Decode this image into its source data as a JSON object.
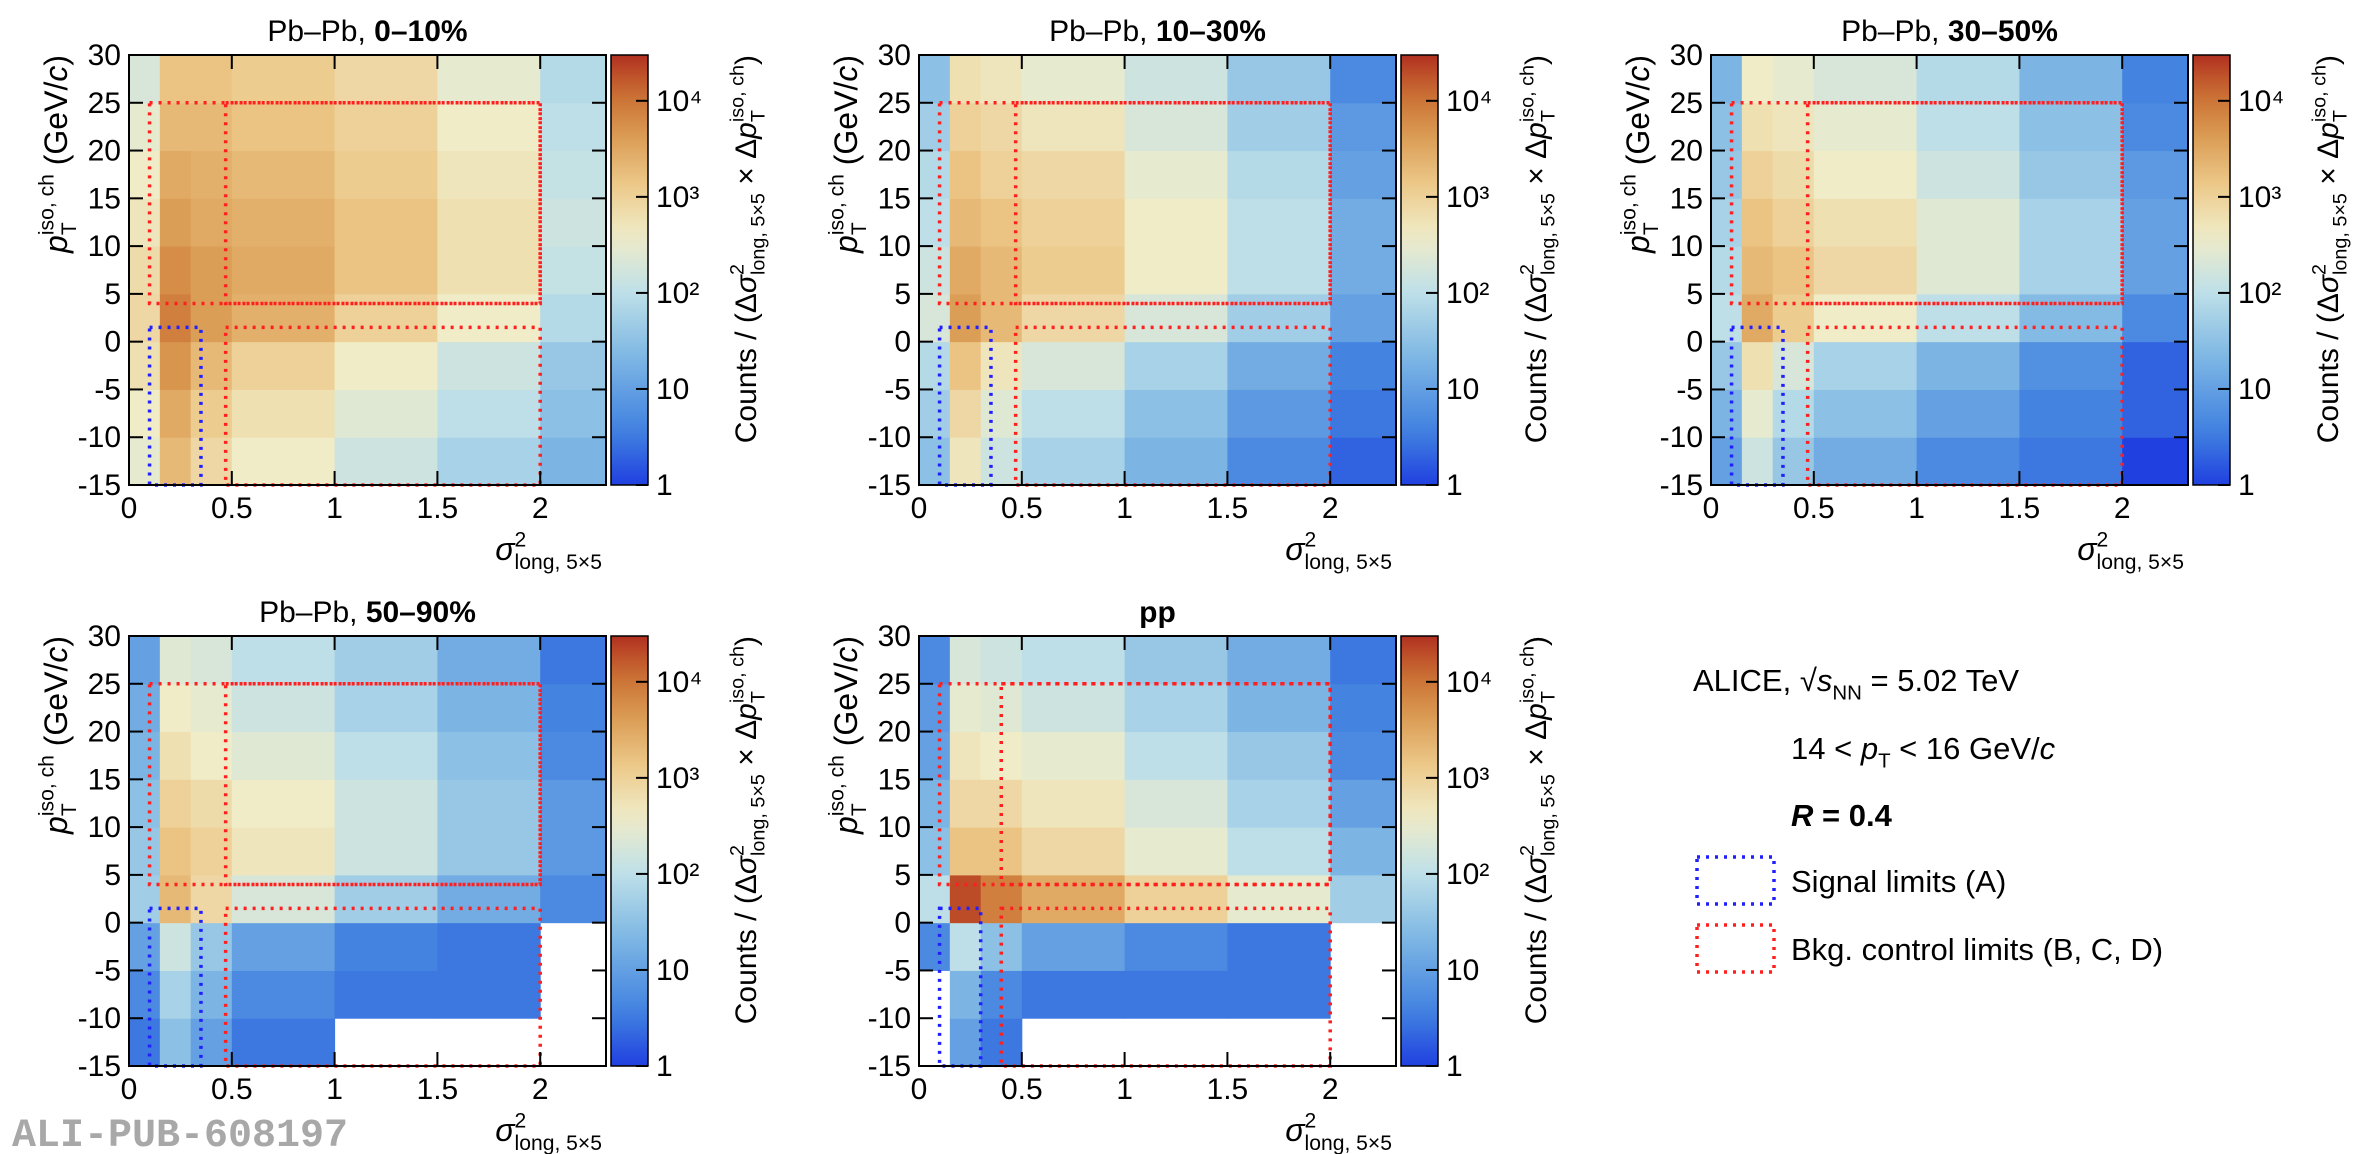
{
  "chart_data": [
    {
      "type": "heatmap",
      "title": [
        {
          "text": "Pb–Pb, ",
          "style": "normal"
        },
        {
          "text": "0–10%",
          "style": "bold"
        }
      ],
      "xbins": [
        0,
        0.15,
        0.3,
        0.5,
        1,
        1.5,
        2,
        2.32
      ],
      "ybins": [
        -15,
        -10,
        -5,
        0,
        5,
        10,
        15,
        20,
        25,
        30
      ],
      "z": [
        [
          300,
          2000,
          800,
          400,
          150,
          60,
          20
        ],
        [
          400,
          3000,
          1200,
          600,
          250,
          100,
          30
        ],
        [
          600,
          5000,
          2000,
          1000,
          400,
          150,
          40
        ],
        [
          800,
          8000,
          4000,
          2500,
          1000,
          400,
          80
        ],
        [
          700,
          6000,
          4000,
          3000,
          1500,
          600,
          120
        ],
        [
          500,
          4000,
          3000,
          2500,
          1500,
          600,
          150
        ],
        [
          400,
          3000,
          2500,
          2000,
          1200,
          500,
          120
        ],
        [
          300,
          2000,
          2000,
          1500,
          1000,
          400,
          100
        ],
        [
          200,
          1500,
          1500,
          1200,
          800,
          300,
          80
        ]
      ],
      "xlim": [
        0,
        2.32
      ],
      "ylim": [
        -15,
        30
      ],
      "zlim": [
        1,
        30000
      ],
      "log_z": true,
      "xticks": [
        0,
        0.5,
        1,
        1.5,
        2
      ],
      "yticks": [
        -15,
        -10,
        -5,
        0,
        5,
        10,
        15,
        20,
        25,
        30
      ],
      "zticks": [
        1,
        10,
        {
          "value": 100,
          "label": "10²"
        },
        {
          "value": 1000,
          "label": "10³"
        },
        {
          "value": 10000,
          "label": "10⁴"
        }
      ],
      "signal_limits": {
        "x": [
          0.1,
          0.35
        ],
        "y": [
          -15,
          1.5
        ]
      },
      "background_limits": [
        {
          "x": [
            0.1,
            2
          ],
          "y": [
            4,
            25
          ]
        },
        {
          "x": [
            0.47,
            2
          ],
          "y": [
            -15,
            1.5
          ]
        },
        {
          "x": [
            0.47,
            2
          ],
          "y": [
            4,
            25
          ]
        }
      ]
    },
    {
      "type": "heatmap",
      "title": [
        {
          "text": "Pb–Pb, ",
          "style": "normal"
        },
        {
          "text": "10–30%",
          "style": "bold"
        }
      ],
      "xbins": [
        0,
        0.15,
        0.3,
        0.5,
        1,
        1.5,
        2,
        2.32
      ],
      "ybins": [
        -15,
        -10,
        -5,
        0,
        5,
        10,
        15,
        20,
        25,
        30
      ],
      "z": [
        [
          30,
          500,
          150,
          60,
          20,
          5,
          2
        ],
        [
          50,
          800,
          250,
          100,
          30,
          8,
          3
        ],
        [
          80,
          1500,
          500,
          200,
          60,
          15,
          4
        ],
        [
          200,
          4000,
          2000,
          800,
          200,
          50,
          10
        ],
        [
          150,
          3000,
          2000,
          1200,
          400,
          100,
          15
        ],
        [
          100,
          2000,
          1500,
          1000,
          400,
          100,
          15
        ],
        [
          80,
          1500,
          1000,
          800,
          300,
          80,
          10
        ],
        [
          50,
          1000,
          800,
          500,
          200,
          50,
          8
        ],
        [
          30,
          600,
          500,
          300,
          150,
          40,
          5
        ]
      ],
      "xlim": [
        0,
        2.32
      ],
      "ylim": [
        -15,
        30
      ],
      "zlim": [
        1,
        30000
      ],
      "log_z": true,
      "xticks": [
        0,
        0.5,
        1,
        1.5,
        2
      ],
      "yticks": [
        -15,
        -10,
        -5,
        0,
        5,
        10,
        15,
        20,
        25,
        30
      ],
      "zticks": [
        1,
        10,
        {
          "value": 100,
          "label": "10²"
        },
        {
          "value": 1000,
          "label": "10³"
        },
        {
          "value": 10000,
          "label": "10⁴"
        }
      ],
      "signal_limits": {
        "x": [
          0.1,
          0.35
        ],
        "y": [
          -15,
          1.5
        ]
      },
      "background_limits": [
        {
          "x": [
            0.1,
            2
          ],
          "y": [
            4,
            25
          ]
        },
        {
          "x": [
            0.47,
            2
          ],
          "y": [
            -15,
            1.5
          ]
        },
        {
          "x": [
            0.47,
            2
          ],
          "y": [
            4,
            25
          ]
        }
      ]
    },
    {
      "type": "heatmap",
      "title": [
        {
          "text": "Pb–Pb, ",
          "style": "normal"
        },
        {
          "text": "30–50%",
          "style": "bold"
        }
      ],
      "xbins": [
        0,
        0.15,
        0.3,
        0.5,
        1,
        1.5,
        2,
        2.32
      ],
      "ybins": [
        -15,
        -10,
        -5,
        0,
        5,
        10,
        15,
        20,
        25,
        30
      ],
      "z": [
        [
          10,
          150,
          40,
          15,
          5,
          3,
          1
        ],
        [
          20,
          300,
          80,
          30,
          10,
          4,
          2
        ],
        [
          40,
          600,
          200,
          60,
          20,
          6,
          2
        ],
        [
          100,
          3000,
          1200,
          400,
          100,
          25,
          5
        ],
        [
          80,
          2000,
          1500,
          800,
          250,
          60,
          10
        ],
        [
          60,
          1500,
          1000,
          600,
          250,
          60,
          10
        ],
        [
          40,
          1000,
          700,
          400,
          150,
          40,
          8
        ],
        [
          30,
          600,
          500,
          300,
          100,
          30,
          5
        ],
        [
          20,
          400,
          300,
          200,
          80,
          20,
          4
        ]
      ],
      "xlim": [
        0,
        2.32
      ],
      "ylim": [
        -15,
        30
      ],
      "zlim": [
        1,
        30000
      ],
      "log_z": true,
      "xticks": [
        0,
        0.5,
        1,
        1.5,
        2
      ],
      "yticks": [
        -15,
        -10,
        -5,
        0,
        5,
        10,
        15,
        20,
        25,
        30
      ],
      "zticks": [
        1,
        10,
        {
          "value": 100,
          "label": "10²"
        },
        {
          "value": 1000,
          "label": "10³"
        },
        {
          "value": 10000,
          "label": "10⁴"
        }
      ],
      "signal_limits": {
        "x": [
          0.1,
          0.35
        ],
        "y": [
          -15,
          1.5
        ]
      },
      "background_limits": [
        {
          "x": [
            0.1,
            2
          ],
          "y": [
            4,
            25
          ]
        },
        {
          "x": [
            0.47,
            2
          ],
          "y": [
            -15,
            1.5
          ]
        },
        {
          "x": [
            0.47,
            2
          ],
          "y": [
            4,
            25
          ]
        }
      ]
    },
    {
      "type": "heatmap",
      "title": [
        {
          "text": "Pb–Pb, ",
          "style": "normal"
        },
        {
          "text": "50–90%",
          "style": "bold"
        }
      ],
      "xbins": [
        0,
        0.15,
        0.3,
        0.5,
        1,
        1.5,
        2,
        2.32
      ],
      "ybins": [
        -15,
        -10,
        -5,
        0,
        5,
        10,
        15,
        20,
        25,
        30
      ],
      "z": [
        [
          3,
          30,
          10,
          3,
          null,
          null,
          null
        ],
        [
          5,
          60,
          20,
          5,
          3,
          3,
          null
        ],
        [
          10,
          150,
          40,
          10,
          4,
          3,
          null
        ],
        [
          50,
          2000,
          800,
          200,
          50,
          15,
          5
        ],
        [
          40,
          1500,
          1000,
          500,
          150,
          40,
          8
        ],
        [
          30,
          1000,
          700,
          400,
          150,
          40,
          8
        ],
        [
          20,
          600,
          400,
          250,
          100,
          30,
          5
        ],
        [
          15,
          400,
          300,
          150,
          60,
          20,
          4
        ],
        [
          10,
          250,
          200,
          100,
          50,
          15,
          3
        ]
      ],
      "xlim": [
        0,
        2.32
      ],
      "ylim": [
        -15,
        30
      ],
      "zlim": [
        1,
        30000
      ],
      "log_z": true,
      "xticks": [
        0,
        0.5,
        1,
        1.5,
        2
      ],
      "yticks": [
        -15,
        -10,
        -5,
        0,
        5,
        10,
        15,
        20,
        25,
        30
      ],
      "zticks": [
        1,
        10,
        {
          "value": 100,
          "label": "10²"
        },
        {
          "value": 1000,
          "label": "10³"
        },
        {
          "value": 10000,
          "label": "10⁴"
        }
      ],
      "signal_limits": {
        "x": [
          0.1,
          0.35
        ],
        "y": [
          -15,
          1.5
        ]
      },
      "background_limits": [
        {
          "x": [
            0.1,
            2
          ],
          "y": [
            4,
            25
          ]
        },
        {
          "x": [
            0.47,
            2
          ],
          "y": [
            -15,
            1.5
          ]
        },
        {
          "x": [
            0.47,
            2
          ],
          "y": [
            4,
            25
          ]
        }
      ]
    },
    {
      "type": "heatmap",
      "title": [
        {
          "text": "pp",
          "style": "bold"
        }
      ],
      "xbins": [
        0,
        0.15,
        0.3,
        0.5,
        1,
        1.5,
        2,
        2.32
      ],
      "ybins": [
        -15,
        -10,
        -5,
        0,
        5,
        10,
        15,
        20,
        25,
        30
      ],
      "z": [
        [
          null,
          10,
          3,
          null,
          null,
          null,
          null
        ],
        [
          null,
          20,
          5,
          3,
          3,
          3,
          null
        ],
        [
          5,
          100,
          30,
          10,
          5,
          3,
          null
        ],
        [
          100,
          20000,
          8000,
          3000,
          1000,
          300,
          50
        ],
        [
          30,
          1500,
          1500,
          800,
          300,
          100,
          20
        ],
        [
          20,
          800,
          800,
          500,
          200,
          60,
          10
        ],
        [
          10,
          500,
          400,
          300,
          100,
          40,
          5
        ],
        [
          8,
          300,
          250,
          150,
          60,
          20,
          4
        ],
        [
          5,
          200,
          150,
          100,
          40,
          15,
          3
        ]
      ],
      "xlim": [
        0,
        2.32
      ],
      "ylim": [
        -15,
        30
      ],
      "zlim": [
        1,
        30000
      ],
      "log_z": true,
      "xticks": [
        0,
        0.5,
        1,
        1.5,
        2
      ],
      "yticks": [
        -15,
        -10,
        -5,
        0,
        5,
        10,
        15,
        20,
        25,
        30
      ],
      "zticks": [
        1,
        10,
        {
          "value": 100,
          "label": "10²"
        },
        {
          "value": 1000,
          "label": "10³"
        },
        {
          "value": 10000,
          "label": "10⁴"
        }
      ],
      "signal_limits": {
        "x": [
          0.1,
          0.3
        ],
        "y": [
          -15,
          1.5
        ]
      },
      "background_limits": [
        {
          "x": [
            0.1,
            2
          ],
          "y": [
            4,
            25
          ]
        },
        {
          "x": [
            0.4,
            2
          ],
          "y": [
            -15,
            1.5
          ]
        },
        {
          "x": [
            0.4,
            2
          ],
          "y": [
            4,
            25
          ]
        }
      ]
    }
  ],
  "axis_labels": {
    "xlabel": [
      {
        "text": "σ",
        "style": "italic"
      },
      {
        "text": "2",
        "style": "sup"
      },
      {
        "text": "long, 5×5",
        "style": "sub"
      }
    ],
    "ylabel": [
      {
        "text": "p",
        "style": "italic"
      },
      {
        "text": "iso, ch",
        "style": "sup"
      },
      {
        "text": "T",
        "style": "sub"
      },
      {
        "text": " (GeV/",
        "style": "normal"
      },
      {
        "text": "c",
        "style": "italic"
      },
      {
        "text": ")",
        "style": "normal"
      }
    ],
    "zlabel": [
      {
        "text": "Counts / (Δ",
        "style": "normal"
      },
      {
        "text": "σ",
        "style": "italic"
      },
      {
        "text": "2",
        "style": "sup"
      },
      {
        "text": "long, 5×5",
        "style": "sub"
      },
      {
        "text": " × Δ",
        "style": "normal"
      },
      {
        "text": "p",
        "style": "italic"
      },
      {
        "text": "iso, ch",
        "style": "sup"
      },
      {
        "text": "T",
        "style": "sub"
      },
      {
        "text": ")",
        "style": "normal"
      }
    ]
  },
  "legend": {
    "text": [
      [
        {
          "text": "ALICE, √",
          "style": "normal"
        },
        {
          "text": "s",
          "style": "italic"
        },
        {
          "text": "NN",
          "style": "sub"
        },
        {
          "text": " = 5.02 TeV",
          "style": "normal"
        }
      ],
      [
        {
          "text": "14 < ",
          "style": "normal"
        },
        {
          "text": "p",
          "style": "italic"
        },
        {
          "text": "T",
          "style": "sub"
        },
        {
          "text": " < 16 GeV/",
          "style": "normal"
        },
        {
          "text": "c",
          "style": "italic"
        }
      ],
      [
        {
          "text": "R",
          "style": "bold-italic"
        },
        {
          "text": " = 0.4",
          "style": "bold"
        }
      ]
    ],
    "entries": [
      {
        "name": "Signal limits (A)",
        "color": "#1f1fff"
      },
      {
        "name": "Bkg. control limits (B, C, D)",
        "color": "#ff1f1f"
      }
    ]
  },
  "watermark": "ALI-PUB-608197"
}
